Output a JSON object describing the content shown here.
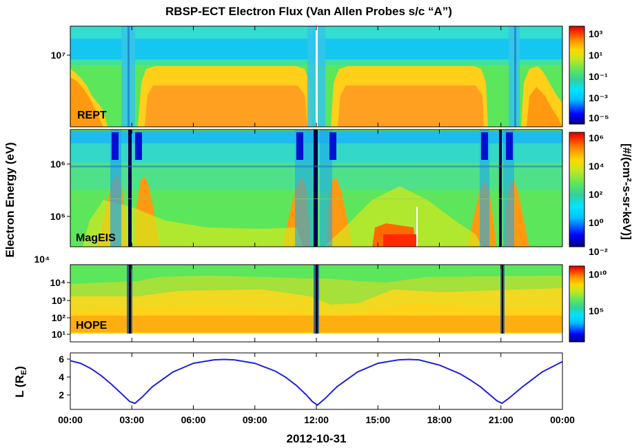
{
  "chart_data": {
    "type": "heatmap",
    "title": "RBSP-ECT Electron Flux (Van Allen Probes s/c “A”)",
    "shared_ylabel": "Electron Energy (eV)",
    "xlabel": "2012-10-31",
    "x_ticks": [
      "00:00",
      "03:00",
      "06:00",
      "09:00",
      "12:00",
      "15:00",
      "18:00",
      "21:00",
      "00:00"
    ],
    "x_range_hours": [
      0,
      24
    ],
    "colorbar_label": "[#/(cm²-s-sr-keV)]",
    "colormap": [
      "#00007f",
      "#0000ff",
      "#00bfff",
      "#00e5ff",
      "#31d0a0",
      "#5ce65c",
      "#c8e61e",
      "#ffd700",
      "#ff8c00",
      "#ff3000",
      "#d10000"
    ],
    "panels": [
      {
        "instrument": "REPT",
        "y_ticks": [
          "10⁷"
        ],
        "colorbar_ticks": [
          "10³",
          "10¹",
          "10⁻¹",
          "10⁻³",
          "10⁻⁵"
        ],
        "colorbar_range_log10": [
          -5,
          3
        ]
      },
      {
        "instrument": "MagEIS",
        "y_ticks": [
          "10⁶",
          "10⁵"
        ],
        "colorbar_ticks": [
          "10⁶",
          "10⁴",
          "10²",
          "10⁰",
          "10⁻²"
        ],
        "colorbar_range_log10": [
          -2,
          6
        ]
      },
      {
        "instrument": "HOPE",
        "y_ticks": [
          "10⁴",
          "10⁴",
          "10³",
          "10²",
          "10¹"
        ],
        "colorbar_ticks": [
          "10¹⁰",
          "10⁵"
        ],
        "colorbar_range_log10": [
          0,
          11
        ]
      },
      {
        "instrument": "L-shell",
        "ylabel_main": "L (R",
        "ylabel_sub": "E",
        "ylabel_close": ")",
        "y_ticks": [
          "6",
          "4",
          "2"
        ],
        "y_range": [
          0.3,
          6.8
        ],
        "series": [
          {
            "name": "",
            "color": "#2020dd",
            "x": [
              0,
              0.5,
              1.0,
              1.5,
              2.0,
              2.5,
              2.9,
              3.15,
              3.5,
              4.0,
              5.0,
              6.0,
              7.0,
              7.5,
              8.0,
              9.0,
              10.0,
              10.5,
              11.0,
              11.5,
              11.8,
              12.05,
              12.4,
              13.0,
              14.0,
              15.0,
              16.0,
              16.5,
              17.0,
              18.0,
              19.0,
              19.5,
              20.0,
              20.5,
              20.8,
              21.05,
              21.4,
              22.0,
              23.0,
              24.0
            ],
            "y": [
              5.9,
              5.6,
              5.0,
              4.2,
              3.2,
              2.1,
              1.2,
              1.0,
              1.7,
              2.9,
              4.6,
              5.6,
              6.0,
              6.05,
              6.0,
              5.6,
              4.7,
              4.0,
              3.1,
              2.0,
              1.2,
              0.8,
              1.5,
              2.9,
              4.6,
              5.6,
              6.0,
              6.05,
              6.0,
              5.4,
              4.4,
              3.7,
              2.9,
              1.9,
              1.3,
              1.0,
              1.6,
              2.8,
              4.6,
              5.8
            ]
          }
        ]
      }
    ]
  }
}
